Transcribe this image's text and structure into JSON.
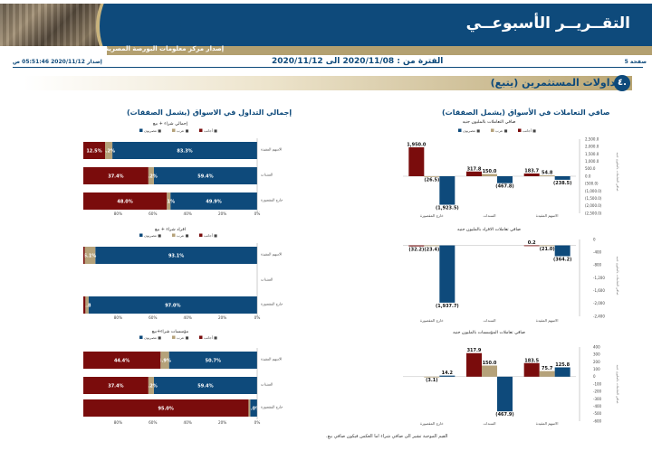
{
  "header": {
    "title": "التقــريــر الأسبوعــي",
    "subtitle": "إصدار مركز معلومات البورصة المصرية",
    "page_label": "صفحة 5",
    "period": "الفترة من : 2020/11/08 الى 2020/11/12",
    "release": "إصدار 2020/11/12 05:51:46 ص"
  },
  "section": {
    "number": "٤.",
    "title": "تداولات المستثمرين (يتبع)"
  },
  "headings": {
    "left": "إجمالي التداول في الاسواق (يشمل الصفقات)",
    "right": "صافي التعاملات في الأسواق (يشمل الصفقات)"
  },
  "footnote": "القيم الموجبة تشير الى صافي شراء اما العكس فيكون صافي بيع.",
  "colors": {
    "egyptians": "#0e4a7b",
    "arabs": "#b5a27a",
    "foreigners": "#7a0c0c"
  },
  "chart_data": [
    {
      "type": "bar",
      "orientation": "horizontal",
      "stacked": true,
      "title": "إجمالي شراء + بيع",
      "legend": [
        "مصريون ■",
        "عرب ■",
        "أجانب ■"
      ],
      "categories": [
        "الاسهم المقيدة",
        "السندات",
        "خارج المقصورة"
      ],
      "series": [
        {
          "name": "مصريون",
          "values": [
            83.3,
            59.4,
            49.9
          ]
        },
        {
          "name": "عرب",
          "values": [
            4.2,
            3.2,
            2.1
          ]
        },
        {
          "name": "أجانب",
          "values": [
            12.5,
            37.4,
            48.0
          ]
        }
      ],
      "labels": [
        [
          "83.3%",
          "4.2%",
          "12.5%"
        ],
        [
          "59.4%",
          "3.2%",
          "37.4%"
        ],
        [
          "49.9%",
          "2.1%",
          "48.0%"
        ]
      ],
      "xticks": [
        "0%",
        "20%",
        "40%",
        "60%",
        "80%"
      ]
    },
    {
      "type": "bar",
      "orientation": "horizontal",
      "stacked": true,
      "title": "افراد شراء + بيع",
      "legend": [
        "مصريون ■",
        "عرب ■",
        "أجانب ■"
      ],
      "categories": [
        "الاسهم المقيدة",
        "السندات",
        "خارج المقصورة"
      ],
      "series": [
        {
          "name": "مصريون",
          "values": [
            93.1,
            0,
            97.0
          ]
        },
        {
          "name": "عرب",
          "values": [
            6.1,
            0,
            1.8
          ]
        },
        {
          "name": "أجانب",
          "values": [
            0.8,
            0,
            1.2
          ]
        }
      ],
      "labels": [
        [
          "93.1%",
          "6.1%",
          ""
        ],
        [
          "",
          "",
          ""
        ],
        [
          "97.0%",
          "1.8",
          ""
        ]
      ],
      "xticks": [
        "0%",
        "20%",
        "40%",
        "60%",
        "80%"
      ]
    },
    {
      "type": "bar",
      "orientation": "horizontal",
      "stacked": true,
      "title": "مؤسسات شراء+بيع",
      "legend": [
        "مصريون ■",
        "عرب ■",
        "أجانب ■"
      ],
      "categories": [
        "الاسهم المقيدة",
        "السندات",
        "خارج المقصورة"
      ],
      "series": [
        {
          "name": "مصريون",
          "values": [
            50.7,
            59.4,
            4.0
          ]
        },
        {
          "name": "عرب",
          "values": [
            4.9,
            3.2,
            1.0
          ]
        },
        {
          "name": "أجانب",
          "values": [
            44.4,
            37.4,
            95.0
          ]
        }
      ],
      "labels": [
        [
          "50.7%",
          "4.9%",
          "44.4%"
        ],
        [
          "59.4%",
          "3.2%",
          "37.4%"
        ],
        [
          "4.0%",
          "",
          "95.0%"
        ]
      ],
      "xticks": [
        "0%",
        "20%",
        "40%",
        "60%",
        "80%"
      ]
    },
    {
      "type": "bar",
      "title": "صافي التعاملات بالمليون جنيه",
      "legend": [
        "مصريون ■",
        "عرب ■",
        "أجانب ■"
      ],
      "categories": [
        "خارج المقصورة",
        "السندات",
        "الاسهم المقيدة"
      ],
      "series": [
        {
          "name": "أجانب",
          "values": [
            1950.0,
            317.8,
            183.7
          ]
        },
        {
          "name": "عرب",
          "values": [
            -26.5,
            150.0,
            54.8
          ]
        },
        {
          "name": "مصريون",
          "values": [
            -1923.5,
            -467.8,
            -238.5
          ]
        }
      ],
      "labels": [
        [
          "1,950.0",
          "317.8",
          "183.7"
        ],
        [
          "(26.5)",
          "150.0",
          "54.8"
        ],
        [
          "(1,923.5)",
          "(467.8)",
          "(238.5)"
        ]
      ],
      "ylim": [
        -2500,
        2500
      ],
      "yticks": [
        "2,500.0",
        "2,000.0",
        "1,500.0",
        "1,000.0",
        "500.0",
        "0.0",
        "(500.0)",
        "(1,000.0)",
        "(1,500.0)",
        "(2,000.0)",
        "(2,500.0)"
      ],
      "ylabel": "صافي التعاملات بالمليون جنيه"
    },
    {
      "type": "bar",
      "title": "صافي تعاملات الافراد بالمليون جنيه",
      "categories": [
        "خارج المقصورة",
        "السندات",
        "الاسهم المقيدة"
      ],
      "series": [
        {
          "name": "أجانب",
          "values": [
            -32.2,
            0,
            0.2
          ]
        },
        {
          "name": "عرب",
          "values": [
            -23.4,
            0,
            -21.0
          ]
        },
        {
          "name": "مصريون",
          "values": [
            -1937.7,
            0,
            -364.2
          ]
        }
      ],
      "labels": [
        [
          "(32.2)",
          "",
          "0.2"
        ],
        [
          "(23.4)",
          "",
          "(21.0)"
        ],
        [
          "(1,937.7)",
          "",
          "(364.2)"
        ]
      ],
      "ylim": [
        -2400,
        200
      ],
      "yticks": [
        "0",
        "-400",
        "-800",
        "-1,200",
        "-1,600",
        "-2,000",
        "-2,400"
      ],
      "ylabel": "صافي التعاملات بالمليون جنيه"
    },
    {
      "type": "bar",
      "title": "صافي تعاملات المؤسسات بالمليون جنيه",
      "categories": [
        "خارج المقصورة",
        "السندات",
        "الاسهم المقيدة"
      ],
      "series": [
        {
          "name": "أجانب",
          "values": [
            0,
            317.9,
            183.5
          ]
        },
        {
          "name": "عرب",
          "values": [
            -3.1,
            150.0,
            75.7
          ]
        },
        {
          "name": "مصريون",
          "values": [
            14.2,
            -467.9,
            125.8
          ]
        }
      ],
      "labels": [
        [
          "",
          "317.9",
          "183.5"
        ],
        [
          "(3.1)",
          "150.0",
          "75.7"
        ],
        [
          "14.2",
          "(467.9)",
          "125.8"
        ]
      ],
      "ylim": [
        -600,
        400
      ],
      "yticks": [
        "400",
        "300",
        "200",
        "100",
        "0",
        "-100",
        "-200",
        "-300",
        "-400",
        "-500",
        "-600"
      ],
      "ylabel": "صافي التعاملات بالمليون جنيه"
    }
  ]
}
